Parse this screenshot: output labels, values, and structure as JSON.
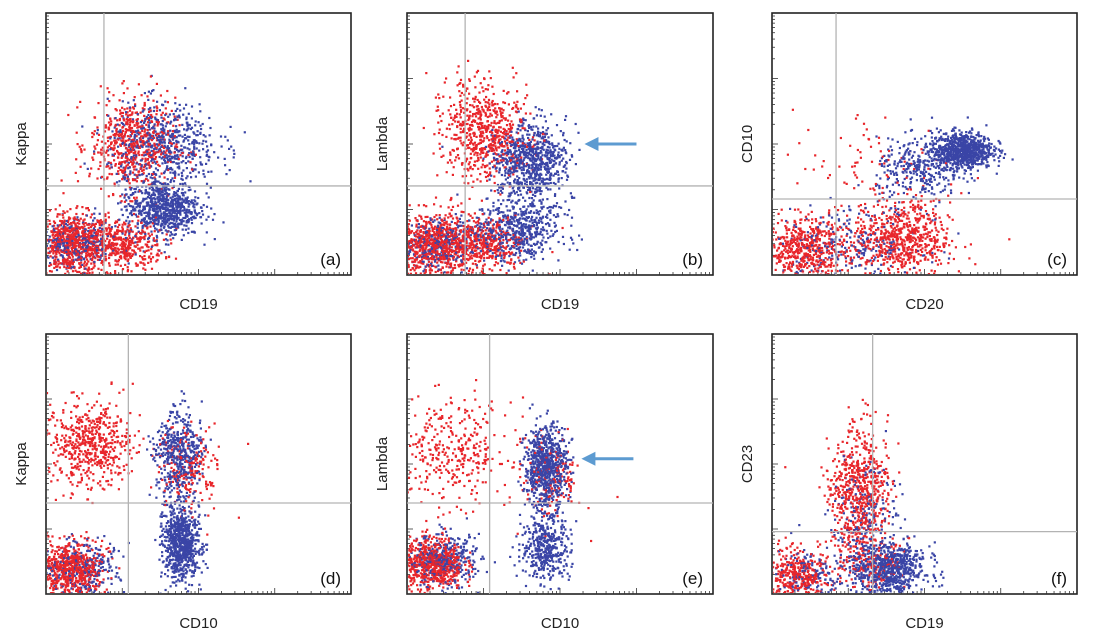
{
  "colors": {
    "population_a": "#e8262b",
    "population_b": "#3a45a6",
    "gate": "#b3b3b3",
    "arrow": "#5d9bd1"
  },
  "chart_data": [
    {
      "type": "scatter",
      "panel": "(a)",
      "xlabel": "CD19",
      "ylabel": "Kappa",
      "xlim": [
        0,
        1
      ],
      "ylim": [
        0,
        1
      ],
      "gate": {
        "x": 0.19,
        "y": 0.34
      },
      "arrow": null,
      "series": [
        {
          "color": "red",
          "clusters": [
            {
              "cx": 0.08,
              "cy": 0.12,
              "sx": 0.06,
              "sy": 0.06,
              "n": 650
            },
            {
              "cx": 0.24,
              "cy": 0.12,
              "sx": 0.07,
              "sy": 0.05,
              "n": 450
            },
            {
              "cx": 0.28,
              "cy": 0.5,
              "sx": 0.07,
              "sy": 0.09,
              "n": 600
            }
          ]
        },
        {
          "color": "blue",
          "clusters": [
            {
              "cx": 0.38,
              "cy": 0.26,
              "sx": 0.06,
              "sy": 0.055,
              "n": 750
            },
            {
              "cx": 0.38,
              "cy": 0.5,
              "sx": 0.09,
              "sy": 0.08,
              "n": 600
            },
            {
              "cx": 0.1,
              "cy": 0.12,
              "sx": 0.07,
              "sy": 0.05,
              "n": 300
            }
          ]
        }
      ]
    },
    {
      "type": "scatter",
      "panel": "(b)",
      "xlabel": "CD19",
      "ylabel": "Lambda",
      "xlim": [
        0,
        1
      ],
      "ylim": [
        0,
        1
      ],
      "gate": {
        "x": 0.19,
        "y": 0.34
      },
      "arrow": {
        "x": 0.58,
        "y": 0.5
      },
      "series": [
        {
          "color": "red",
          "clusters": [
            {
              "cx": 0.08,
              "cy": 0.12,
              "sx": 0.06,
              "sy": 0.06,
              "n": 650
            },
            {
              "cx": 0.24,
              "cy": 0.12,
              "sx": 0.07,
              "sy": 0.05,
              "n": 450
            },
            {
              "cx": 0.25,
              "cy": 0.55,
              "sx": 0.07,
              "sy": 0.09,
              "n": 650
            }
          ]
        },
        {
          "color": "blue",
          "clusters": [
            {
              "cx": 0.4,
              "cy": 0.44,
              "sx": 0.06,
              "sy": 0.07,
              "n": 750
            },
            {
              "cx": 0.36,
              "cy": 0.18,
              "sx": 0.07,
              "sy": 0.06,
              "n": 550
            },
            {
              "cx": 0.1,
              "cy": 0.12,
              "sx": 0.07,
              "sy": 0.05,
              "n": 300
            }
          ]
        }
      ]
    },
    {
      "type": "scatter",
      "panel": "(c)",
      "xlabel": "CD20",
      "ylabel": "CD10",
      "xlim": [
        0,
        1
      ],
      "ylim": [
        0,
        1
      ],
      "gate": {
        "x": 0.21,
        "y": 0.29
      },
      "arrow": null,
      "series": [
        {
          "color": "red",
          "clusters": [
            {
              "cx": 0.1,
              "cy": 0.1,
              "sx": 0.07,
              "sy": 0.06,
              "n": 550
            },
            {
              "cx": 0.42,
              "cy": 0.14,
              "sx": 0.08,
              "sy": 0.07,
              "n": 650
            },
            {
              "cx": 0.35,
              "cy": 0.4,
              "sx": 0.15,
              "sy": 0.12,
              "n": 100
            }
          ]
        },
        {
          "color": "blue",
          "clusters": [
            {
              "cx": 0.62,
              "cy": 0.48,
              "sx": 0.05,
              "sy": 0.035,
              "n": 800
            },
            {
              "cx": 0.48,
              "cy": 0.4,
              "sx": 0.07,
              "sy": 0.06,
              "n": 300
            },
            {
              "cx": 0.25,
              "cy": 0.12,
              "sx": 0.12,
              "sy": 0.07,
              "n": 250
            }
          ]
        }
      ]
    },
    {
      "type": "scatter",
      "panel": "(d)",
      "xlabel": "CD10",
      "ylabel": "Kappa",
      "xlim": [
        0,
        1
      ],
      "ylim": [
        0,
        1
      ],
      "gate": {
        "x": 0.27,
        "y": 0.35
      },
      "arrow": null,
      "series": [
        {
          "color": "red",
          "clusters": [
            {
              "cx": 0.08,
              "cy": 0.1,
              "sx": 0.05,
              "sy": 0.05,
              "n": 650
            },
            {
              "cx": 0.14,
              "cy": 0.58,
              "sx": 0.07,
              "sy": 0.08,
              "n": 550
            },
            {
              "cx": 0.47,
              "cy": 0.48,
              "sx": 0.05,
              "sy": 0.08,
              "n": 200
            }
          ]
        },
        {
          "color": "blue",
          "clusters": [
            {
              "cx": 0.44,
              "cy": 0.2,
              "sx": 0.03,
              "sy": 0.07,
              "n": 800
            },
            {
              "cx": 0.43,
              "cy": 0.55,
              "sx": 0.04,
              "sy": 0.08,
              "n": 450
            },
            {
              "cx": 0.12,
              "cy": 0.1,
              "sx": 0.06,
              "sy": 0.05,
              "n": 250
            }
          ]
        }
      ]
    },
    {
      "type": "scatter",
      "panel": "(e)",
      "xlabel": "CD10",
      "ylabel": "Lambda",
      "xlim": [
        0,
        1
      ],
      "ylim": [
        0,
        1
      ],
      "gate": {
        "x": 0.27,
        "y": 0.35
      },
      "arrow": {
        "x": 0.57,
        "y": 0.52
      },
      "series": [
        {
          "color": "red",
          "clusters": [
            {
              "cx": 0.08,
              "cy": 0.12,
              "sx": 0.05,
              "sy": 0.05,
              "n": 650
            },
            {
              "cx": 0.14,
              "cy": 0.55,
              "sx": 0.1,
              "sy": 0.1,
              "n": 350
            },
            {
              "cx": 0.47,
              "cy": 0.45,
              "sx": 0.05,
              "sy": 0.08,
              "n": 150
            }
          ]
        },
        {
          "color": "blue",
          "clusters": [
            {
              "cx": 0.45,
              "cy": 0.49,
              "sx": 0.035,
              "sy": 0.08,
              "n": 750
            },
            {
              "cx": 0.45,
              "cy": 0.18,
              "sx": 0.04,
              "sy": 0.06,
              "n": 400
            },
            {
              "cx": 0.12,
              "cy": 0.13,
              "sx": 0.06,
              "sy": 0.05,
              "n": 350
            }
          ]
        }
      ]
    },
    {
      "type": "scatter",
      "panel": "(f)",
      "xlabel": "CD19",
      "ylabel": "CD23",
      "xlim": [
        0,
        1
      ],
      "ylim": [
        0,
        1
      ],
      "gate": {
        "x": 0.33,
        "y": 0.24
      },
      "arrow": null,
      "series": [
        {
          "color": "red",
          "clusters": [
            {
              "cx": 0.08,
              "cy": 0.07,
              "sx": 0.05,
              "sy": 0.05,
              "n": 400
            },
            {
              "cx": 0.28,
              "cy": 0.4,
              "sx": 0.05,
              "sy": 0.12,
              "n": 650
            },
            {
              "cx": 0.32,
              "cy": 0.12,
              "sx": 0.05,
              "sy": 0.05,
              "n": 150
            }
          ]
        },
        {
          "color": "blue",
          "clusters": [
            {
              "cx": 0.38,
              "cy": 0.1,
              "sx": 0.06,
              "sy": 0.05,
              "n": 750
            },
            {
              "cx": 0.3,
              "cy": 0.3,
              "sx": 0.05,
              "sy": 0.1,
              "n": 200
            },
            {
              "cx": 0.12,
              "cy": 0.08,
              "sx": 0.06,
              "sy": 0.05,
              "n": 150
            }
          ]
        }
      ]
    }
  ]
}
